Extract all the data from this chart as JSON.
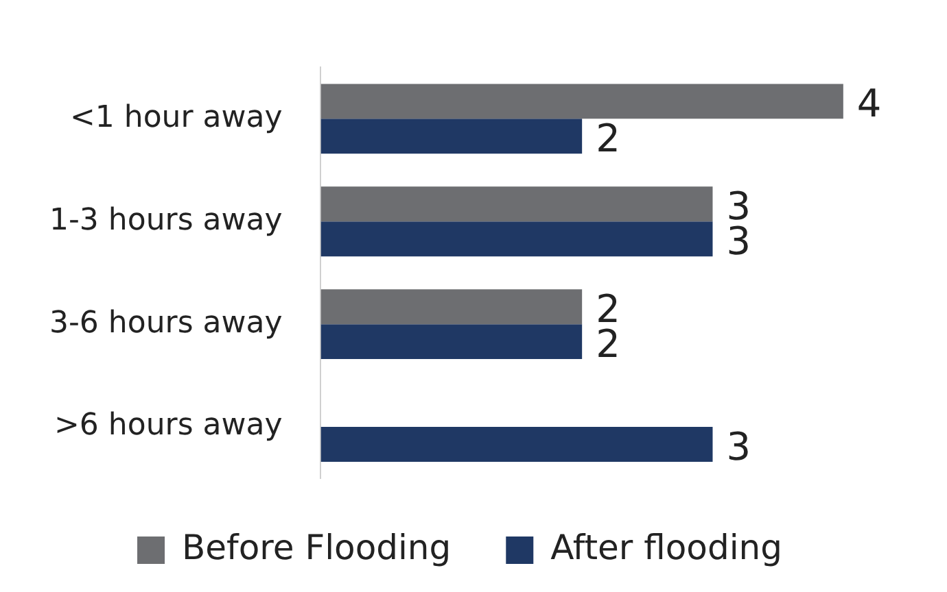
{
  "chart_data": {
    "type": "bar",
    "orientation": "horizontal",
    "categories": [
      "<1 hour away",
      "1-3 hours away",
      "3-6 hours away",
      ">6 hours away"
    ],
    "series": [
      {
        "name": "Before Flooding",
        "color": "#6d6e71",
        "values": [
          4,
          3,
          2,
          null
        ]
      },
      {
        "name": "After flooding",
        "color": "#1f3864",
        "values": [
          2,
          3,
          2,
          3
        ]
      }
    ],
    "data_labels": true,
    "legend": "bottom"
  }
}
